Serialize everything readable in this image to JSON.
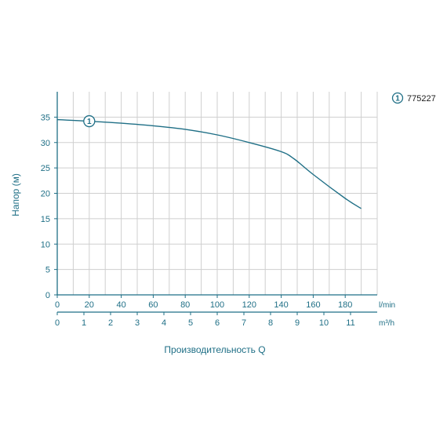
{
  "chart_data": {
    "type": "line",
    "ylabel": "Напор (м)",
    "xlabel": "Производительность Q",
    "x_unit_primary": "l/min",
    "x_unit_secondary": "m³/h",
    "xlim": [
      0,
      200
    ],
    "ylim": [
      0,
      40
    ],
    "grid": true,
    "x_ticks_primary": [
      "0",
      "20",
      "40",
      "60",
      "80",
      "100",
      "120",
      "140",
      "160",
      "180"
    ],
    "x_ticks_primary_values": [
      0,
      20,
      40,
      60,
      80,
      100,
      120,
      140,
      160,
      180
    ],
    "x_ticks_secondary": [
      "0",
      "1",
      "2",
      "3",
      "4",
      "5",
      "6",
      "7",
      "8",
      "9",
      "10",
      "11"
    ],
    "x_ticks_secondary_values": [
      0,
      1,
      2,
      3,
      4,
      5,
      6,
      7,
      8,
      9,
      10,
      11
    ],
    "y_ticks": [
      "0",
      "5",
      "10",
      "15",
      "20",
      "25",
      "30",
      "35"
    ],
    "y_tick_values": [
      0,
      5,
      10,
      15,
      20,
      25,
      30,
      35
    ],
    "series": [
      {
        "name": "775227",
        "marker": "1",
        "x": [
          0,
          20,
          40,
          60,
          80,
          100,
          120,
          140,
          148,
          160,
          180,
          190
        ],
        "y": [
          34.5,
          34.2,
          33.8,
          33.3,
          32.6,
          31.5,
          30.0,
          28.2,
          26.8,
          23.7,
          19.0,
          17.0
        ]
      }
    ],
    "legend": {
      "position": "top-right",
      "marker": "1",
      "label": "775227"
    },
    "colors": {
      "axis": "#1f6f86",
      "grid": "#cfcfcf",
      "line": "#1f6f86"
    }
  }
}
